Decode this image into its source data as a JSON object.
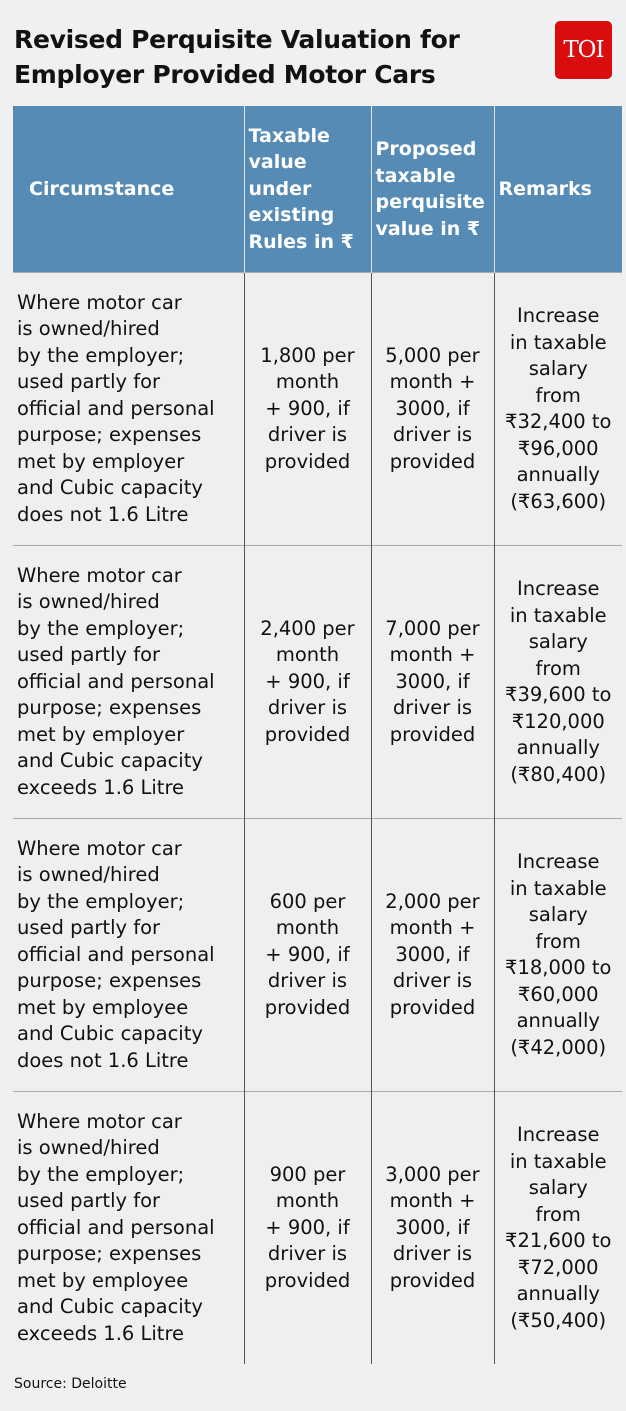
{
  "title_line1": "Revised Perquisite Valuation for",
  "title_line2": "Employer Provided Motor Cars",
  "logo": "TOI",
  "colors": {
    "header_bg": "#558bb4",
    "logo_bg": "#d90d0e",
    "page_bg": "#eff0f2"
  },
  "table": {
    "headers": [
      "Circumstance",
      "Taxable\nvalue\nunder\nexisting\nRules in ₹",
      "Proposed\ntaxable\nperquisite\nvalue in ₹",
      "Remarks"
    ],
    "rows": [
      [
        "Where motor car\nis owned/hired\nby the employer;\nused partly for\nofficial and personal\npurpose; expenses\nmet by employer\nand Cubic capacity\ndoes not 1.6 Litre",
        "1,800 per\nmonth\n+ 900, if\ndriver is\nprovided",
        "5,000 per\nmonth +\n3000, if\ndriver is\nprovided",
        "Increase\nin taxable\nsalary\nfrom\n₹32,400 to\n₹96,000\nannually\n(₹63,600)"
      ],
      [
        "Where motor car\nis owned/hired\nby the employer;\nused partly for\nofficial and personal\npurpose; expenses\nmet by employer\nand Cubic capacity\nexceeds 1.6 Litre",
        "2,400 per\nmonth\n+ 900, if\ndriver is\nprovided",
        "7,000 per\nmonth +\n3000, if\ndriver is\nprovided",
        "Increase\nin taxable\nsalary\nfrom\n₹39,600 to\n₹120,000\nannually\n(₹80,400)"
      ],
      [
        "Where motor car\nis owned/hired\nby the employer;\nused partly for\nofficial and personal\npurpose; expenses\nmet by employee\nand Cubic capacity\ndoes not 1.6 Litre",
        "600 per\nmonth\n+ 900, if\ndriver is\nprovided",
        "2,000 per\nmonth +\n3000, if\ndriver is\nprovided",
        "Increase\nin taxable\nsalary\nfrom\n₹18,000 to\n₹60,000\nannually\n(₹42,000)"
      ],
      [
        "Where motor car\nis owned/hired\nby the employer;\nused partly for\nofficial and personal\npurpose; expenses\nmet by employee\nand Cubic capacity\nexceeds 1.6 Litre",
        "900 per\nmonth\n+ 900, if\ndriver is\nprovided",
        "3,000 per\nmonth +\n3000, if\ndriver is\nprovided",
        "Increase\nin taxable\nsalary\nfrom\n₹21,600 to\n₹72,000\nannually\n(₹50,400)"
      ]
    ]
  },
  "source": "Source: Deloitte"
}
